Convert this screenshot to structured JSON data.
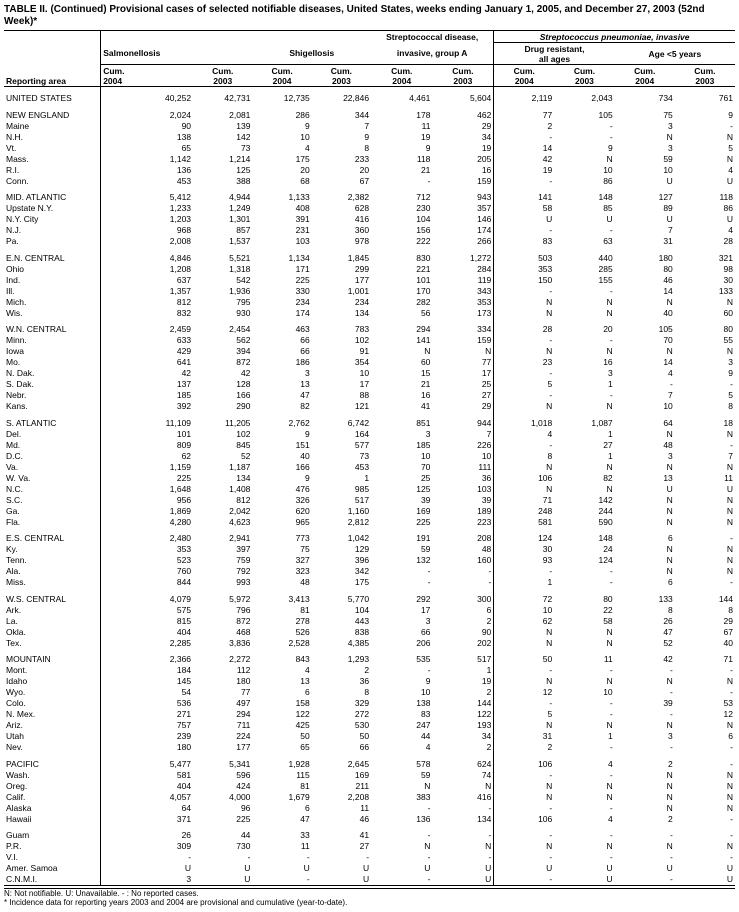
{
  "title": "TABLE II. (Continued) Provisional cases of selected notifiable diseases, United States, weeks ending January 1, 2005, and December 27, 2003 (52nd Week)*",
  "header": {
    "group1": "Salmonellosis",
    "group2": "Shigellosis",
    "group3_line1": "Streptococcal disease,",
    "group3_line2": "invasive, group A",
    "super": "Streptococcus pneumoniae, invasive",
    "group4_line1": "Drug resistant,",
    "group4_line2": "all ages",
    "group5": "Age <5 years",
    "col_cum": "Cum.",
    "col_2004": "2004",
    "col_2003": "2003",
    "reporting_area": "Reporting area"
  },
  "footnotes": {
    "line1": "N: Not notifiable.      U: Unavailable.          - : No reported cases.",
    "line2": "* Incidence data for reporting years 2003 and 2004 are provisional and cumulative (year-to-date)."
  },
  "rows": [
    {
      "g": 1,
      "n": "UNITED STATES",
      "c": [
        "40,252",
        "42,731",
        "12,735",
        "22,846",
        "4,461",
        "5,604",
        "2,119",
        "2,043",
        "734",
        "761"
      ]
    },
    {
      "g": 1,
      "n": "NEW ENGLAND",
      "c": [
        "2,024",
        "2,081",
        "286",
        "344",
        "178",
        "462",
        "77",
        "105",
        "75",
        "9"
      ]
    },
    {
      "n": "Maine",
      "c": [
        "90",
        "139",
        "9",
        "7",
        "11",
        "29",
        "2",
        "-",
        "3",
        "-"
      ]
    },
    {
      "n": "N.H.",
      "c": [
        "138",
        "142",
        "10",
        "9",
        "19",
        "34",
        "-",
        "-",
        "N",
        "N"
      ]
    },
    {
      "n": "Vt.",
      "c": [
        "65",
        "73",
        "4",
        "8",
        "9",
        "19",
        "14",
        "9",
        "3",
        "5"
      ]
    },
    {
      "n": "Mass.",
      "c": [
        "1,142",
        "1,214",
        "175",
        "233",
        "118",
        "205",
        "42",
        "N",
        "59",
        "N"
      ]
    },
    {
      "n": "R.I.",
      "c": [
        "136",
        "125",
        "20",
        "20",
        "21",
        "16",
        "19",
        "10",
        "10",
        "4"
      ]
    },
    {
      "n": "Conn.",
      "c": [
        "453",
        "388",
        "68",
        "67",
        "-",
        "159",
        "-",
        "86",
        "U",
        "U"
      ]
    },
    {
      "g": 1,
      "n": "MID. ATLANTIC",
      "c": [
        "5,412",
        "4,944",
        "1,133",
        "2,382",
        "712",
        "943",
        "141",
        "148",
        "127",
        "118"
      ]
    },
    {
      "n": "Upstate N.Y.",
      "c": [
        "1,233",
        "1,249",
        "408",
        "628",
        "230",
        "357",
        "58",
        "85",
        "89",
        "86"
      ]
    },
    {
      "n": "N.Y. City",
      "c": [
        "1,203",
        "1,301",
        "391",
        "416",
        "104",
        "146",
        "U",
        "U",
        "U",
        "U"
      ]
    },
    {
      "n": "N.J.",
      "c": [
        "968",
        "857",
        "231",
        "360",
        "156",
        "174",
        "-",
        "-",
        "7",
        "4"
      ]
    },
    {
      "n": "Pa.",
      "c": [
        "2,008",
        "1,537",
        "103",
        "978",
        "222",
        "266",
        "83",
        "63",
        "31",
        "28"
      ]
    },
    {
      "g": 1,
      "n": "E.N. CENTRAL",
      "c": [
        "4,846",
        "5,521",
        "1,134",
        "1,845",
        "830",
        "1,272",
        "503",
        "440",
        "180",
        "321"
      ]
    },
    {
      "n": "Ohio",
      "c": [
        "1,208",
        "1,318",
        "171",
        "299",
        "221",
        "284",
        "353",
        "285",
        "80",
        "98"
      ]
    },
    {
      "n": "Ind.",
      "c": [
        "637",
        "542",
        "225",
        "177",
        "101",
        "119",
        "150",
        "155",
        "46",
        "30"
      ]
    },
    {
      "n": "Ill.",
      "c": [
        "1,357",
        "1,936",
        "330",
        "1,001",
        "170",
        "343",
        "-",
        "-",
        "14",
        "133"
      ]
    },
    {
      "n": "Mich.",
      "c": [
        "812",
        "795",
        "234",
        "234",
        "282",
        "353",
        "N",
        "N",
        "N",
        "N"
      ]
    },
    {
      "n": "Wis.",
      "c": [
        "832",
        "930",
        "174",
        "134",
        "56",
        "173",
        "N",
        "N",
        "40",
        "60"
      ]
    },
    {
      "g": 1,
      "n": "W.N. CENTRAL",
      "c": [
        "2,459",
        "2,454",
        "463",
        "783",
        "294",
        "334",
        "28",
        "20",
        "105",
        "80"
      ]
    },
    {
      "n": "Minn.",
      "c": [
        "633",
        "562",
        "66",
        "102",
        "141",
        "159",
        "-",
        "-",
        "70",
        "55"
      ]
    },
    {
      "n": "Iowa",
      "c": [
        "429",
        "394",
        "66",
        "91",
        "N",
        "N",
        "N",
        "N",
        "N",
        "N"
      ]
    },
    {
      "n": "Mo.",
      "c": [
        "641",
        "872",
        "186",
        "354",
        "60",
        "77",
        "23",
        "16",
        "14",
        "3"
      ]
    },
    {
      "n": "N. Dak.",
      "c": [
        "42",
        "42",
        "3",
        "10",
        "15",
        "17",
        "-",
        "3",
        "4",
        "9"
      ]
    },
    {
      "n": "S. Dak.",
      "c": [
        "137",
        "128",
        "13",
        "17",
        "21",
        "25",
        "5",
        "1",
        "-",
        "-"
      ]
    },
    {
      "n": "Nebr.",
      "c": [
        "185",
        "166",
        "47",
        "88",
        "16",
        "27",
        "-",
        "-",
        "7",
        "5"
      ]
    },
    {
      "n": "Kans.",
      "c": [
        "392",
        "290",
        "82",
        "121",
        "41",
        "29",
        "N",
        "N",
        "10",
        "8"
      ]
    },
    {
      "g": 1,
      "n": "S. ATLANTIC",
      "c": [
        "11,109",
        "11,205",
        "2,762",
        "6,742",
        "851",
        "944",
        "1,018",
        "1,087",
        "64",
        "18"
      ]
    },
    {
      "n": "Del.",
      "c": [
        "101",
        "102",
        "9",
        "164",
        "3",
        "7",
        "4",
        "1",
        "N",
        "N"
      ]
    },
    {
      "n": "Md.",
      "c": [
        "809",
        "845",
        "151",
        "577",
        "185",
        "226",
        "-",
        "27",
        "48",
        "-"
      ]
    },
    {
      "n": "D.C.",
      "c": [
        "62",
        "52",
        "40",
        "73",
        "10",
        "10",
        "8",
        "1",
        "3",
        "7"
      ]
    },
    {
      "n": "Va.",
      "c": [
        "1,159",
        "1,187",
        "166",
        "453",
        "70",
        "111",
        "N",
        "N",
        "N",
        "N"
      ]
    },
    {
      "n": "W. Va.",
      "c": [
        "225",
        "134",
        "9",
        "1",
        "25",
        "36",
        "106",
        "82",
        "13",
        "11"
      ]
    },
    {
      "n": "N.C.",
      "c": [
        "1,648",
        "1,408",
        "476",
        "985",
        "125",
        "103",
        "N",
        "N",
        "U",
        "U"
      ]
    },
    {
      "n": "S.C.",
      "c": [
        "956",
        "812",
        "326",
        "517",
        "39",
        "39",
        "71",
        "142",
        "N",
        "N"
      ]
    },
    {
      "n": "Ga.",
      "c": [
        "1,869",
        "2,042",
        "620",
        "1,160",
        "169",
        "189",
        "248",
        "244",
        "N",
        "N"
      ]
    },
    {
      "n": "Fla.",
      "c": [
        "4,280",
        "4,623",
        "965",
        "2,812",
        "225",
        "223",
        "581",
        "590",
        "N",
        "N"
      ]
    },
    {
      "g": 1,
      "n": "E.S. CENTRAL",
      "c": [
        "2,480",
        "2,941",
        "773",
        "1,042",
        "191",
        "208",
        "124",
        "148",
        "6",
        "-"
      ]
    },
    {
      "n": "Ky.",
      "c": [
        "353",
        "397",
        "75",
        "129",
        "59",
        "48",
        "30",
        "24",
        "N",
        "N"
      ]
    },
    {
      "n": "Tenn.",
      "c": [
        "523",
        "759",
        "327",
        "396",
        "132",
        "160",
        "93",
        "124",
        "N",
        "N"
      ]
    },
    {
      "n": "Ala.",
      "c": [
        "760",
        "792",
        "323",
        "342",
        "-",
        "-",
        "-",
        "-",
        "N",
        "N"
      ]
    },
    {
      "n": "Miss.",
      "c": [
        "844",
        "993",
        "48",
        "175",
        "-",
        "-",
        "1",
        "-",
        "6",
        "-"
      ]
    },
    {
      "g": 1,
      "n": "W.S. CENTRAL",
      "c": [
        "4,079",
        "5,972",
        "3,413",
        "5,770",
        "292",
        "300",
        "72",
        "80",
        "133",
        "144"
      ]
    },
    {
      "n": "Ark.",
      "c": [
        "575",
        "796",
        "81",
        "104",
        "17",
        "6",
        "10",
        "22",
        "8",
        "8"
      ]
    },
    {
      "n": "La.",
      "c": [
        "815",
        "872",
        "278",
        "443",
        "3",
        "2",
        "62",
        "58",
        "26",
        "29"
      ]
    },
    {
      "n": "Okla.",
      "c": [
        "404",
        "468",
        "526",
        "838",
        "66",
        "90",
        "N",
        "N",
        "47",
        "67"
      ]
    },
    {
      "n": "Tex.",
      "c": [
        "2,285",
        "3,836",
        "2,528",
        "4,385",
        "206",
        "202",
        "N",
        "N",
        "52",
        "40"
      ]
    },
    {
      "g": 1,
      "n": "MOUNTAIN",
      "c": [
        "2,366",
        "2,272",
        "843",
        "1,293",
        "535",
        "517",
        "50",
        "11",
        "42",
        "71"
      ]
    },
    {
      "n": "Mont.",
      "c": [
        "184",
        "112",
        "4",
        "2",
        "-",
        "1",
        "-",
        "-",
        "-",
        "-"
      ]
    },
    {
      "n": "Idaho",
      "c": [
        "145",
        "180",
        "13",
        "36",
        "9",
        "19",
        "N",
        "N",
        "N",
        "N"
      ]
    },
    {
      "n": "Wyo.",
      "c": [
        "54",
        "77",
        "6",
        "8",
        "10",
        "2",
        "12",
        "10",
        "-",
        "-"
      ]
    },
    {
      "n": "Colo.",
      "c": [
        "536",
        "497",
        "158",
        "329",
        "138",
        "144",
        "-",
        "-",
        "39",
        "53"
      ]
    },
    {
      "n": "N. Mex.",
      "c": [
        "271",
        "294",
        "122",
        "272",
        "83",
        "122",
        "5",
        "-",
        "-",
        "12"
      ]
    },
    {
      "n": "Ariz.",
      "c": [
        "757",
        "711",
        "425",
        "530",
        "247",
        "193",
        "N",
        "N",
        "N",
        "N"
      ]
    },
    {
      "n": "Utah",
      "c": [
        "239",
        "224",
        "50",
        "50",
        "44",
        "34",
        "31",
        "1",
        "3",
        "6"
      ]
    },
    {
      "n": "Nev.",
      "c": [
        "180",
        "177",
        "65",
        "66",
        "4",
        "2",
        "2",
        "-",
        "-",
        "-"
      ]
    },
    {
      "g": 1,
      "n": "PACIFIC",
      "c": [
        "5,477",
        "5,341",
        "1,928",
        "2,645",
        "578",
        "624",
        "106",
        "4",
        "2",
        "-"
      ]
    },
    {
      "n": "Wash.",
      "c": [
        "581",
        "596",
        "115",
        "169",
        "59",
        "74",
        "-",
        "-",
        "N",
        "N"
      ]
    },
    {
      "n": "Oreg.",
      "c": [
        "404",
        "424",
        "81",
        "211",
        "N",
        "N",
        "N",
        "N",
        "N",
        "N"
      ]
    },
    {
      "n": "Calif.",
      "c": [
        "4,057",
        "4,000",
        "1,679",
        "2,208",
        "383",
        "416",
        "N",
        "N",
        "N",
        "N"
      ]
    },
    {
      "n": "Alaska",
      "c": [
        "64",
        "96",
        "6",
        "11",
        "-",
        "-",
        "-",
        "-",
        "N",
        "N"
      ]
    },
    {
      "n": "Hawaii",
      "c": [
        "371",
        "225",
        "47",
        "46",
        "136",
        "134",
        "106",
        "4",
        "2",
        "-"
      ]
    },
    {
      "g": 1,
      "n": "Guam",
      "c": [
        "26",
        "44",
        "33",
        "41",
        "-",
        "-",
        "-",
        "-",
        "-",
        "-"
      ]
    },
    {
      "n": "P.R.",
      "c": [
        "309",
        "730",
        "11",
        "27",
        "N",
        "N",
        "N",
        "N",
        "N",
        "N"
      ]
    },
    {
      "n": "V.I.",
      "c": [
        "-",
        "-",
        "-",
        "-",
        "-",
        "-",
        "-",
        "-",
        "-",
        "-"
      ]
    },
    {
      "n": "Amer. Samoa",
      "c": [
        "U",
        "U",
        "U",
        "U",
        "U",
        "U",
        "U",
        "U",
        "U",
        "U"
      ]
    },
    {
      "n": "C.N.M.I.",
      "c": [
        "3",
        "U",
        "-",
        "U",
        "-",
        "U",
        "-",
        "U",
        "-",
        "U"
      ]
    }
  ]
}
